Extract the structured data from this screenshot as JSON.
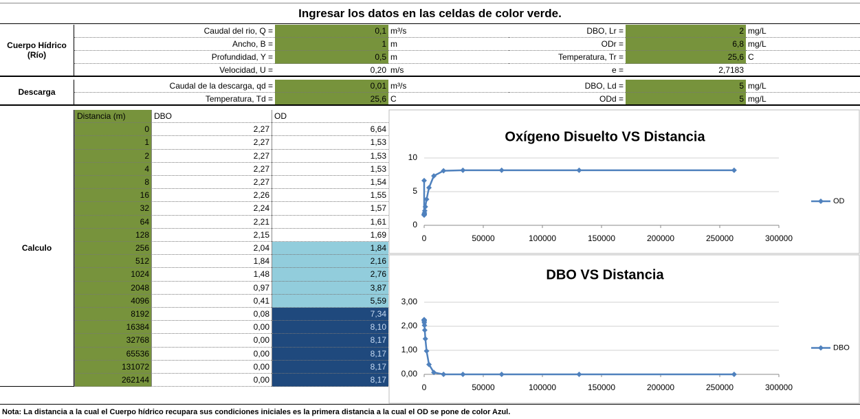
{
  "header": "Ingresar los datos en las celdas de color verde.",
  "river": {
    "label": "Cuerpo Hídrico (Río)",
    "left": [
      {
        "label": "Caudal del rio, Q =",
        "value": "0,1",
        "unit": "m³/s",
        "input": true
      },
      {
        "label": "Ancho, B =",
        "value": "1",
        "unit": "m",
        "input": true
      },
      {
        "label": "Profundidad, Y =",
        "value": "0,5",
        "unit": "m",
        "input": true
      },
      {
        "label": "Velocidad, U =",
        "value": "0,20",
        "unit": "m/s",
        "input": false
      }
    ],
    "right": [
      {
        "label": "DBO, Lr =",
        "value": "2",
        "unit": "mg/L",
        "input": true
      },
      {
        "label": "ODr =",
        "value": "6,8",
        "unit": "mg/L",
        "input": true
      },
      {
        "label": "Temperatura, Tr =",
        "value": "25,6",
        "unit": "C",
        "input": true
      },
      {
        "label": "e =",
        "value": "2,7183",
        "input": false
      }
    ]
  },
  "discharge": {
    "label": "Descarga",
    "left": [
      {
        "label": "Caudal de la descarga, qd =",
        "value": "0,01",
        "unit": "m³/s",
        "input": true
      },
      {
        "label": "Temperatura, Td =",
        "value": "25,6",
        "unit": "C",
        "input": true
      }
    ],
    "right": [
      {
        "label": "DBO, Ld =",
        "value": "5",
        "unit": "mg/L",
        "input": true
      },
      {
        "label": "ODd =",
        "value": "5",
        "unit": "mg/L",
        "input": true
      }
    ]
  },
  "calc": {
    "label": "Calculo",
    "columns": [
      "Distancia (m)",
      "DBO",
      "OD"
    ],
    "rows": [
      [
        "0",
        "2,27",
        "6,64"
      ],
      [
        "1",
        "2,27",
        "1,53"
      ],
      [
        "2",
        "2,27",
        "1,53"
      ],
      [
        "4",
        "2,27",
        "1,53"
      ],
      [
        "8",
        "2,27",
        "1,54"
      ],
      [
        "16",
        "2,26",
        "1,55"
      ],
      [
        "32",
        "2,24",
        "1,57"
      ],
      [
        "64",
        "2,21",
        "1,61"
      ],
      [
        "128",
        "2,15",
        "1,69"
      ],
      [
        "256",
        "2,04",
        "1,84"
      ],
      [
        "512",
        "1,84",
        "2,16"
      ],
      [
        "1024",
        "1,48",
        "2,76"
      ],
      [
        "2048",
        "0,97",
        "3,87"
      ],
      [
        "4096",
        "0,41",
        "5,59"
      ],
      [
        "8192",
        "0,08",
        "7,34"
      ],
      [
        "16384",
        "0,00",
        "8,10"
      ],
      [
        "32768",
        "0,00",
        "8,17"
      ],
      [
        "65536",
        "0,00",
        "8,17"
      ],
      [
        "131072",
        "0,00",
        "8,17"
      ],
      [
        "262144",
        "0,00",
        "8,17"
      ]
    ],
    "od_colors": [
      "#ffffff",
      "#ffffff",
      "#ffffff",
      "#ffffff",
      "#ffffff",
      "#ffffff",
      "#ffffff",
      "#ffffff",
      "#ffffff",
      "#92cddc",
      "#92cddc",
      "#92cddc",
      "#92cddc",
      "#92cddc",
      "#1f497d",
      "#1f497d",
      "#1f497d",
      "#1f497d",
      "#1f497d",
      "#1f497d"
    ]
  },
  "charts": [
    {
      "type": "line",
      "title": "Oxígeno Disuelto VS Distancia",
      "x": [
        0,
        1,
        2,
        4,
        8,
        16,
        32,
        64,
        128,
        256,
        512,
        1024,
        2048,
        4096,
        8192,
        16384,
        32768,
        65536,
        131072,
        262144
      ],
      "series": [
        {
          "name": "OD",
          "color": "#4f81bd",
          "values": [
            6.64,
            1.53,
            1.53,
            1.53,
            1.54,
            1.55,
            1.57,
            1.61,
            1.69,
            1.84,
            2.16,
            2.76,
            3.87,
            5.59,
            7.34,
            8.1,
            8.17,
            8.17,
            8.17,
            8.17
          ]
        }
      ],
      "xlim": [
        0,
        300000
      ],
      "xticks": [
        0,
        50000,
        100000,
        150000,
        200000,
        250000,
        300000
      ],
      "ylim": [
        0,
        10
      ],
      "yticks": [
        0,
        5,
        10
      ]
    },
    {
      "type": "line",
      "title": "DBO VS Distancia",
      "x": [
        0,
        1,
        2,
        4,
        8,
        16,
        32,
        64,
        128,
        256,
        512,
        1024,
        2048,
        4096,
        8192,
        16384,
        32768,
        65536,
        131072,
        262144
      ],
      "series": [
        {
          "name": "DBO",
          "color": "#4f81bd",
          "values": [
            2.27,
            2.27,
            2.27,
            2.27,
            2.27,
            2.26,
            2.24,
            2.21,
            2.15,
            2.04,
            1.84,
            1.48,
            0.97,
            0.41,
            0.08,
            0.0,
            0.0,
            0.0,
            0.0,
            0.0
          ]
        }
      ],
      "xlim": [
        0,
        300000
      ],
      "xticks": [
        0,
        50000,
        100000,
        150000,
        200000,
        250000,
        300000
      ],
      "ylim": [
        0,
        3
      ],
      "yticks": [
        {
          "value": 0,
          "label": "0,00"
        },
        {
          "value": 1,
          "label": "1,00"
        },
        {
          "value": 2,
          "label": "2,00"
        },
        {
          "value": 3,
          "label": "3,00"
        }
      ]
    }
  ],
  "note": "Nota: La distancia a la cual el Cuerpo hídrico recupara sus condiciones iniciales es la primera distancia a la cual el OD se pone de color Azul."
}
